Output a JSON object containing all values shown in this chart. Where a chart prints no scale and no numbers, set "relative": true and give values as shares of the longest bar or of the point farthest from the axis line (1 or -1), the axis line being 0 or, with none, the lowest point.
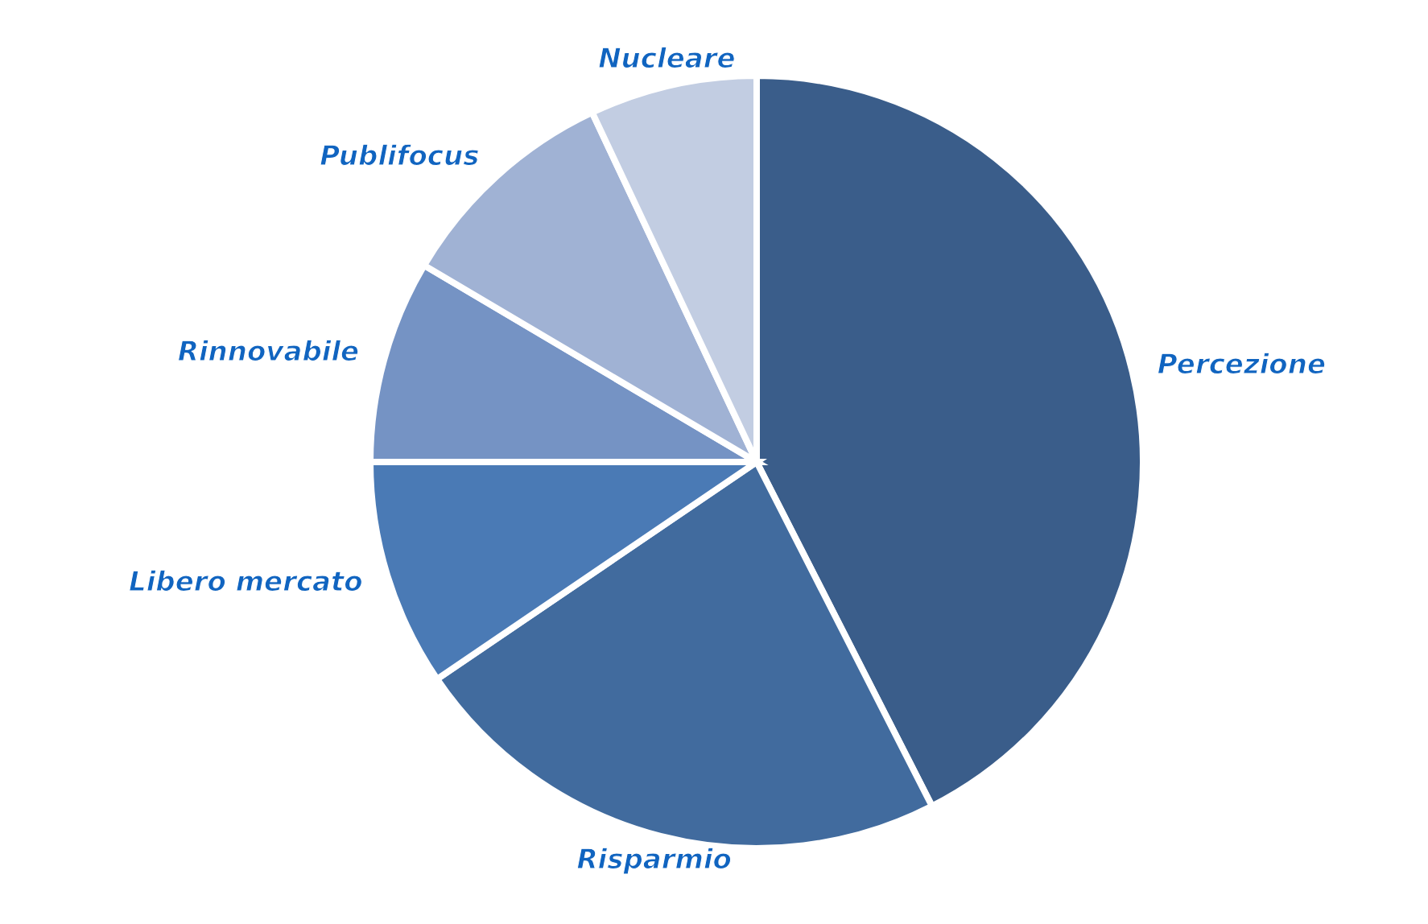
{
  "chart_data": {
    "type": "pie",
    "relative": true,
    "categories": [
      "Percezione",
      "Risparmio",
      "Libero mercato",
      "Rinnovabile",
      "Publifocus",
      "Nucleare"
    ],
    "values": [
      42.5,
      23,
      9.5,
      8.5,
      9.5,
      7
    ],
    "colors": [
      "#3a5d8a",
      "#416b9e",
      "#4a7ab5",
      "#7593c4",
      "#a0b2d4",
      "#c2cde2"
    ]
  }
}
